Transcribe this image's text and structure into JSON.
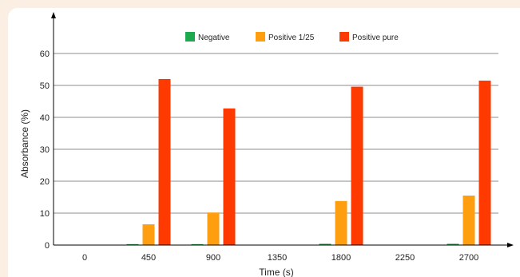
{
  "chart_data": {
    "type": "bar",
    "xlabel": "Time (s)",
    "ylabel": "Absorbance (%)",
    "ylim": [
      0,
      60
    ],
    "yticks": [
      0,
      10,
      20,
      30,
      40,
      50,
      60
    ],
    "categories": [
      "0",
      "450",
      "900",
      "1350",
      "1800",
      "2250",
      "2700"
    ],
    "grid": true,
    "legend_position": "top-center",
    "series": [
      {
        "name": "Negative",
        "color": "#1fa84f",
        "values": [
          0,
          0.3,
          0.3,
          0,
          0.4,
          0,
          0.4
        ]
      },
      {
        "name": "Positive 1/25",
        "color": "#ff9f0f",
        "values": [
          0,
          6.5,
          10.2,
          0,
          13.8,
          0,
          15.5
        ]
      },
      {
        "name": "Positive pure",
        "color": "#ff3a00",
        "values": [
          0,
          52,
          42.8,
          0,
          49.6,
          0,
          51.5
        ]
      }
    ]
  }
}
